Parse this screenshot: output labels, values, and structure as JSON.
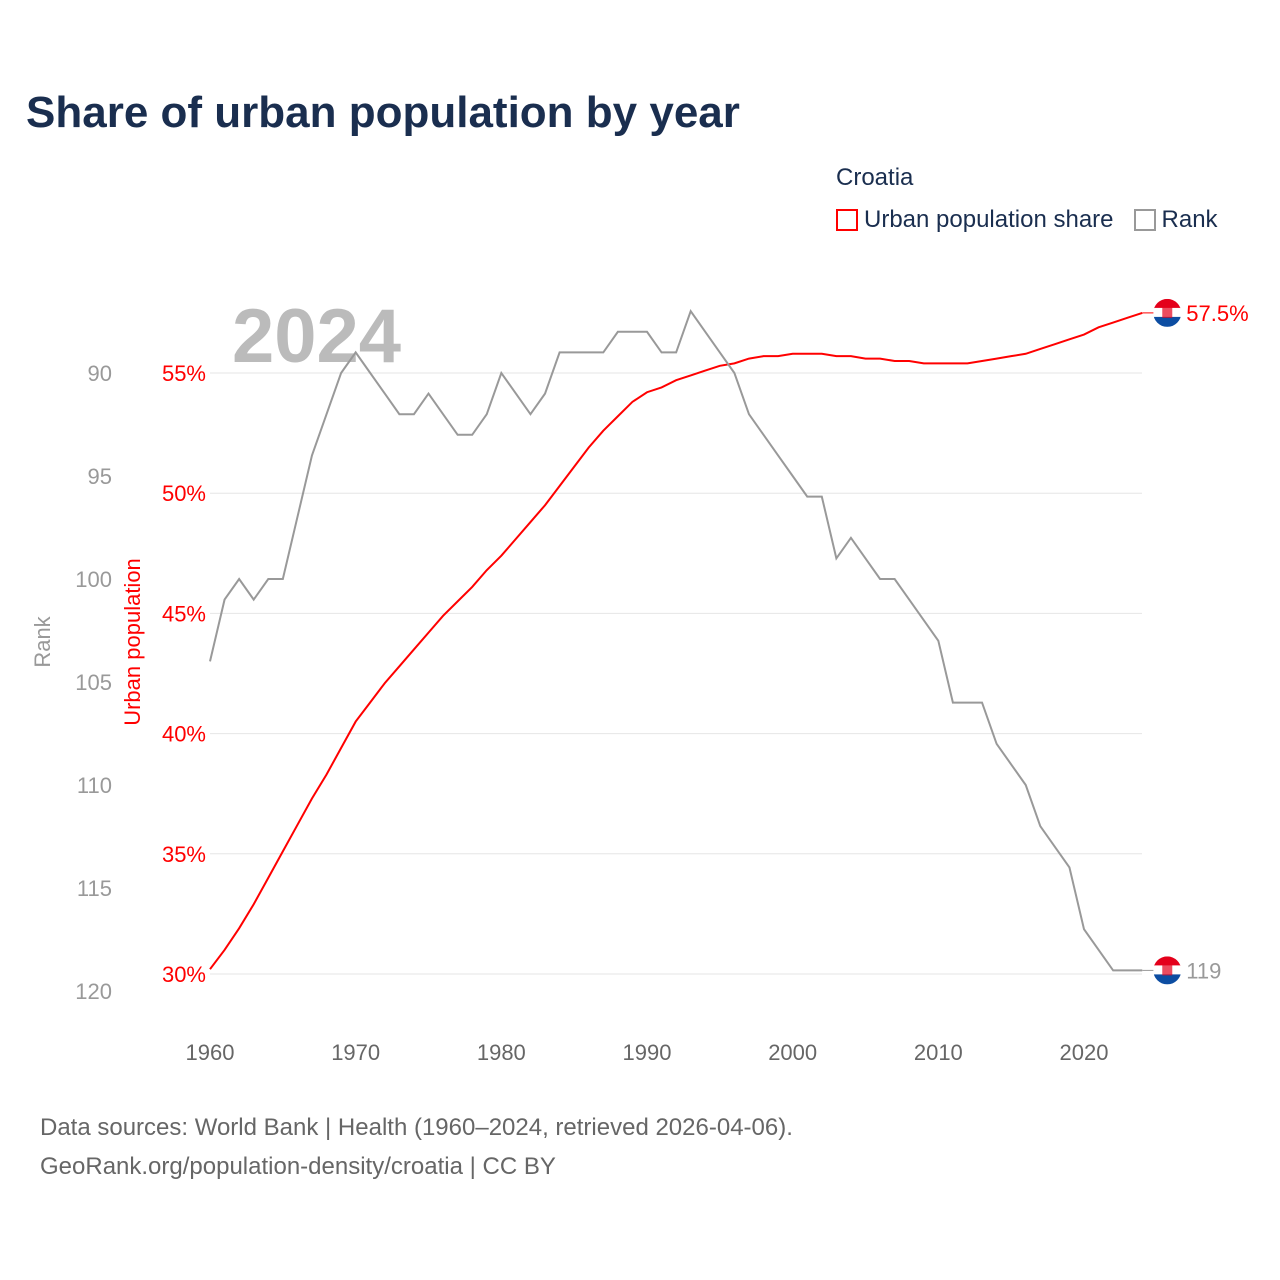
{
  "title": "Share of urban population by year",
  "legend": {
    "title": "Croatia",
    "items": [
      {
        "label": "Urban population share",
        "color": "#ff0000"
      },
      {
        "label": "Rank",
        "color": "#999999"
      }
    ]
  },
  "watermark_year": "2024",
  "source_line1": "Data sources: World Bank | Health (1960–2024, retrieved 2026-04-06).",
  "source_line2": "GeoRank.org/population-density/croatia | CC BY",
  "chart_data": {
    "type": "line",
    "title": "Share of urban population by year",
    "x": [
      1960,
      1961,
      1962,
      1963,
      1964,
      1965,
      1966,
      1967,
      1968,
      1969,
      1970,
      1971,
      1972,
      1973,
      1974,
      1975,
      1976,
      1977,
      1978,
      1979,
      1980,
      1981,
      1982,
      1983,
      1984,
      1985,
      1986,
      1987,
      1988,
      1989,
      1990,
      1991,
      1992,
      1993,
      1994,
      1995,
      1996,
      1997,
      1998,
      1999,
      2000,
      2001,
      2002,
      2003,
      2004,
      2005,
      2006,
      2007,
      2008,
      2009,
      2010,
      2011,
      2012,
      2013,
      2014,
      2015,
      2016,
      2017,
      2018,
      2019,
      2020,
      2021,
      2022,
      2023,
      2024
    ],
    "series": [
      {
        "name": "Urban population share",
        "axis": "left",
        "color": "#ff0000",
        "end_label": "57.5%",
        "values": [
          30.2,
          31.0,
          31.9,
          32.9,
          34.0,
          35.1,
          36.2,
          37.3,
          38.3,
          39.4,
          40.5,
          41.3,
          42.1,
          42.8,
          43.5,
          44.2,
          44.9,
          45.5,
          46.1,
          46.8,
          47.4,
          48.1,
          48.8,
          49.5,
          50.3,
          51.1,
          51.9,
          52.6,
          53.2,
          53.8,
          54.2,
          54.4,
          54.7,
          54.9,
          55.1,
          55.3,
          55.4,
          55.6,
          55.7,
          55.7,
          55.8,
          55.8,
          55.8,
          55.7,
          55.7,
          55.6,
          55.6,
          55.5,
          55.5,
          55.4,
          55.4,
          55.4,
          55.4,
          55.5,
          55.6,
          55.7,
          55.8,
          56.0,
          56.2,
          56.4,
          56.6,
          56.9,
          57.1,
          57.3,
          57.5
        ]
      },
      {
        "name": "Rank",
        "axis": "rank",
        "color": "#999999",
        "end_label": "119",
        "values": [
          104,
          101,
          100,
          101,
          100,
          100,
          97,
          94,
          92,
          90,
          89,
          90,
          91,
          92,
          92,
          91,
          92,
          93,
          93,
          92,
          90,
          91,
          92,
          91,
          89,
          89,
          89,
          89,
          88,
          88,
          88,
          89,
          89,
          87,
          88,
          89,
          90,
          92,
          93,
          94,
          95,
          96,
          96,
          99,
          98,
          99,
          100,
          100,
          101,
          102,
          103,
          106,
          106,
          106,
          108,
          109,
          110,
          112,
          113,
          114,
          117,
          118,
          119,
          119,
          119
        ]
      }
    ],
    "xticks": [
      "1960",
      "1970",
      "1980",
      "1990",
      "2000",
      "2010",
      "2020"
    ],
    "yticks_left": [
      "30%",
      "35%",
      "40%",
      "45%",
      "50%",
      "55%"
    ],
    "yticks_rank": [
      "90",
      "95",
      "100",
      "105",
      "110",
      "115",
      "120"
    ],
    "ylabel_left": "Urban population",
    "ylabel_rank": "Rank",
    "ylim_left": [
      30,
      57.5
    ],
    "ylim_rank": [
      120,
      87
    ]
  }
}
